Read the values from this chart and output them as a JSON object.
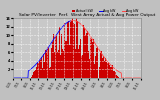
{
  "title": "Solar PV/Inverter Perf. West Array Actual & Average Power Output",
  "title_fontsize": 3.5,
  "background_color": "#c0c0c0",
  "plot_bg_color": "#c8c8c8",
  "bar_color": "#cc0000",
  "avg_line_color_blue": "#0000ff",
  "avg_line_color_red": "#ff4444",
  "legend_actual": "Actual kW",
  "legend_avg_blue": "Avg kW",
  "legend_avg_red": "Avg kW",
  "ylim": [
    0,
    14
  ],
  "yticks_right": [
    2,
    4,
    6,
    8,
    10,
    12,
    14
  ],
  "yticks_left": [
    2,
    4,
    6,
    8,
    10,
    12,
    14
  ],
  "grid_color": "#ffffff",
  "n_bars": 288,
  "seed": 17
}
